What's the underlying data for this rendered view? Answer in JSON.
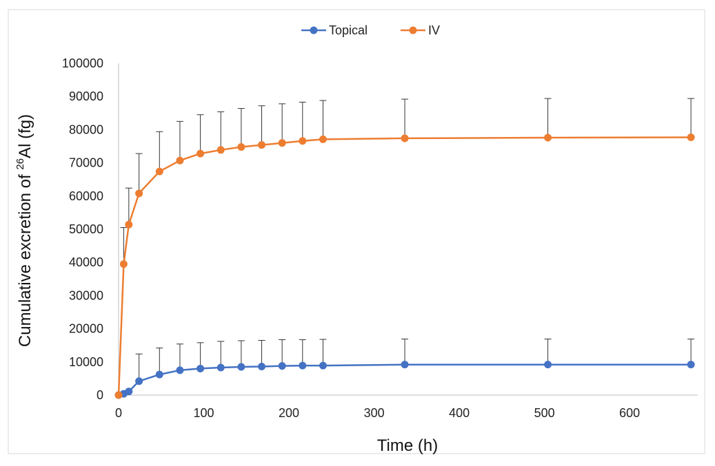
{
  "chart_data": {
    "type": "line",
    "xlabel": "Time (h)",
    "ylabel": {
      "prefix": "Cumulative excretion of ",
      "superscript": "26",
      "element": "Al",
      "suffix": " (fg)"
    },
    "xlim": [
      0,
      680
    ],
    "ylim": [
      0,
      100000
    ],
    "x_ticks": [
      0,
      100,
      200,
      300,
      400,
      500,
      600
    ],
    "y_ticks": [
      0,
      10000,
      20000,
      30000,
      40000,
      50000,
      60000,
      70000,
      80000,
      90000,
      100000
    ],
    "grid": false,
    "legend_position": "top-center",
    "error_bars": "upper",
    "series": [
      {
        "name": "Topical",
        "color": "#4472c4",
        "points": [
          {
            "x": 0,
            "y": 0,
            "err": 0
          },
          {
            "x": 6,
            "y": 400,
            "err": 0
          },
          {
            "x": 12,
            "y": 1100,
            "err": 0
          },
          {
            "x": 24,
            "y": 4200,
            "err": 8200
          },
          {
            "x": 48,
            "y": 6200,
            "err": 8000
          },
          {
            "x": 72,
            "y": 7500,
            "err": 7900
          },
          {
            "x": 96,
            "y": 8000,
            "err": 7800
          },
          {
            "x": 120,
            "y": 8300,
            "err": 7900
          },
          {
            "x": 144,
            "y": 8500,
            "err": 7900
          },
          {
            "x": 168,
            "y": 8600,
            "err": 7900
          },
          {
            "x": 192,
            "y": 8800,
            "err": 7900
          },
          {
            "x": 216,
            "y": 8900,
            "err": 7800
          },
          {
            "x": 240,
            "y": 8900,
            "err": 7900
          },
          {
            "x": 336,
            "y": 9200,
            "err": 7700
          },
          {
            "x": 504,
            "y": 9200,
            "err": 7700
          },
          {
            "x": 672,
            "y": 9200,
            "err": 7700
          }
        ]
      },
      {
        "name": "IV",
        "color": "#ed7d31",
        "points": [
          {
            "x": 0,
            "y": 0,
            "err": 0
          },
          {
            "x": 6,
            "y": 39500,
            "err": 11000
          },
          {
            "x": 12,
            "y": 51400,
            "err": 11000
          },
          {
            "x": 24,
            "y": 60800,
            "err": 12000
          },
          {
            "x": 48,
            "y": 67400,
            "err": 12000
          },
          {
            "x": 72,
            "y": 70700,
            "err": 11800
          },
          {
            "x": 96,
            "y": 72800,
            "err": 11700
          },
          {
            "x": 120,
            "y": 73900,
            "err": 11500
          },
          {
            "x": 144,
            "y": 74800,
            "err": 11600
          },
          {
            "x": 168,
            "y": 75400,
            "err": 11800
          },
          {
            "x": 192,
            "y": 76000,
            "err": 11800
          },
          {
            "x": 216,
            "y": 76600,
            "err": 11700
          },
          {
            "x": 240,
            "y": 77100,
            "err": 11700
          },
          {
            "x": 336,
            "y": 77400,
            "err": 11800
          },
          {
            "x": 504,
            "y": 77600,
            "err": 11800
          },
          {
            "x": 672,
            "y": 77700,
            "err": 11700
          }
        ]
      }
    ]
  }
}
